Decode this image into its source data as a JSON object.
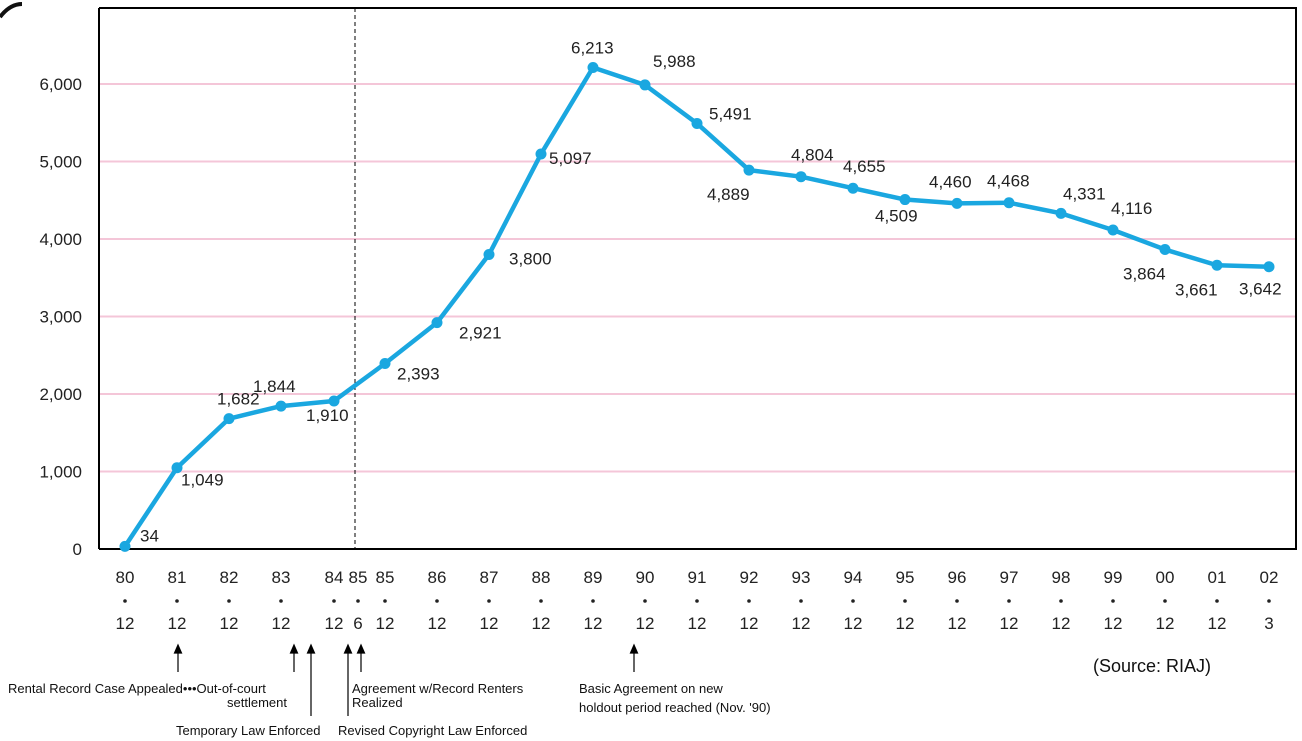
{
  "chart_data": {
    "type": "line",
    "title": "",
    "xlabel": "",
    "ylabel": "",
    "ylim": [
      0,
      7000
    ],
    "yticks": [
      0,
      1000,
      2000,
      3000,
      4000,
      5000,
      6000
    ],
    "ytick_labels": [
      "0",
      "1,000",
      "2,000",
      "3,000",
      "4,000",
      "5,000",
      "6,000"
    ],
    "grid": "horizontal",
    "categories": [
      {
        "year": "80",
        "month": "12"
      },
      {
        "year": "81",
        "month": "12"
      },
      {
        "year": "82",
        "month": "12"
      },
      {
        "year": "83",
        "month": "12"
      },
      {
        "year": "84",
        "month": "12"
      },
      {
        "year": "85",
        "month": "6"
      },
      {
        "year": "85",
        "month": "12"
      },
      {
        "year": "86",
        "month": "12"
      },
      {
        "year": "87",
        "month": "12"
      },
      {
        "year": "88",
        "month": "12"
      },
      {
        "year": "89",
        "month": "12"
      },
      {
        "year": "90",
        "month": "12"
      },
      {
        "year": "91",
        "month": "12"
      },
      {
        "year": "92",
        "month": "12"
      },
      {
        "year": "93",
        "month": "12"
      },
      {
        "year": "94",
        "month": "12"
      },
      {
        "year": "95",
        "month": "12"
      },
      {
        "year": "96",
        "month": "12"
      },
      {
        "year": "97",
        "month": "12"
      },
      {
        "year": "98",
        "month": "12"
      },
      {
        "year": "99",
        "month": "12"
      },
      {
        "year": "00",
        "month": "12"
      },
      {
        "year": "01",
        "month": "12"
      },
      {
        "year": "02",
        "month": "3"
      }
    ],
    "series": [
      {
        "x": [
          "80.12",
          "81.12",
          "82.12",
          "83.12",
          "84.12",
          "85.12",
          "86.12",
          "87.12",
          "88.12",
          "89.12",
          "90.12",
          "91.12",
          "92.12",
          "93.12",
          "94.12",
          "95.12",
          "96.12",
          "97.12",
          "98.12",
          "99.12",
          "00.12",
          "01.12",
          "02.3"
        ],
        "values": [
          34,
          1049,
          1682,
          1844,
          1910,
          2393,
          2921,
          3800,
          5097,
          6213,
          5988,
          5491,
          4889,
          4804,
          4655,
          4509,
          4460,
          4468,
          4331,
          4116,
          3864,
          3661,
          3642
        ],
        "labels": [
          "34",
          "1,049",
          "1,682",
          "1,844",
          "1,910",
          "2,393",
          "2,921",
          "3,800",
          "5,097",
          "6,213",
          "5,988",
          "5,491",
          "4,889",
          "4,804",
          "4,655",
          "4,509",
          "4,460",
          "4,468",
          "4,331",
          "4,116",
          "3,864",
          "3,661",
          "3,642"
        ],
        "color": "#1aa7e0"
      }
    ],
    "annotations": [
      {
        "text": "Rental Record Case Appealed•••Out-of-court\nsettlement",
        "at": "81.12"
      },
      {
        "text": "Temporary Law Enforced",
        "at": "83.12"
      },
      {
        "text": "Agreement w/Record Renters\nRealized",
        "at": "85.6"
      },
      {
        "text": "Revised Copyright Law Enforced",
        "at": "85.6"
      },
      {
        "text": "Basic Agreement on new\nholdout period reached (Nov. '90)",
        "at": "90.12"
      }
    ],
    "source": "(Source: RIAJ)",
    "colors": {
      "line": "#1aa7e0",
      "grid": "#f4c6d8",
      "axis": "#000000"
    }
  }
}
